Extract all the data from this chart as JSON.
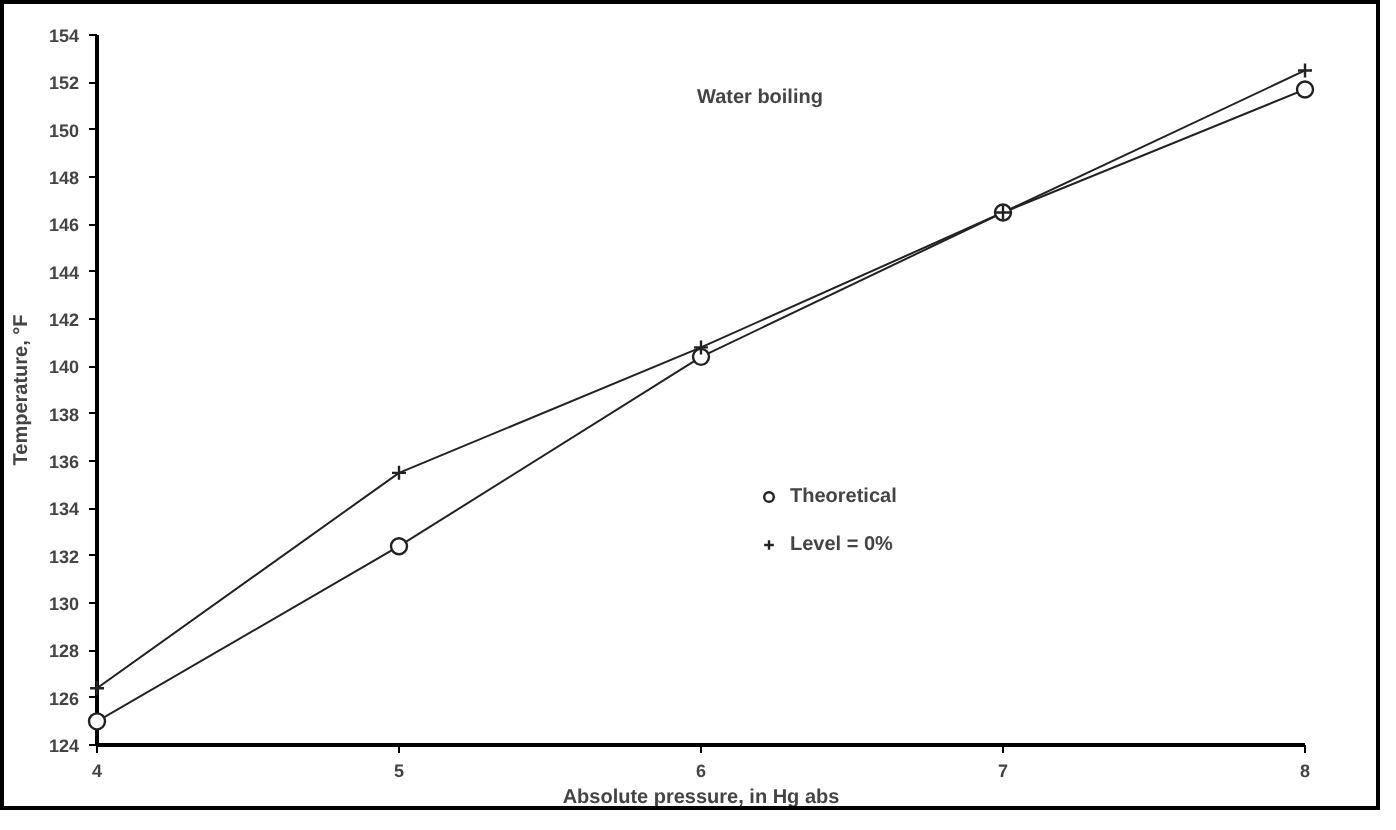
{
  "chart_data": {
    "type": "line",
    "title": "Water boiling",
    "xlabel": "Absolute pressure, in Hg abs",
    "ylabel": "Temperature, °F",
    "x": [
      4,
      5,
      6,
      7,
      8
    ],
    "xlim": [
      4,
      8
    ],
    "xticks": [
      4,
      5,
      6,
      7,
      8
    ],
    "ylim": [
      124,
      154
    ],
    "yticks": [
      124,
      126,
      128,
      130,
      132,
      134,
      136,
      138,
      140,
      142,
      144,
      146,
      148,
      150,
      152,
      154
    ],
    "series": [
      {
        "name": "Theoretical",
        "color": "#222222",
        "marker": "circle",
        "values": [
          125.0,
          132.4,
          140.4,
          146.5,
          151.7
        ]
      },
      {
        "name": "Level = 0%",
        "color": "#222222",
        "marker": "cross",
        "values": [
          126.4,
          135.5,
          140.8,
          146.5,
          152.5
        ]
      }
    ],
    "legend": "bottom",
    "grid": false,
    "line_style": "solid"
  }
}
